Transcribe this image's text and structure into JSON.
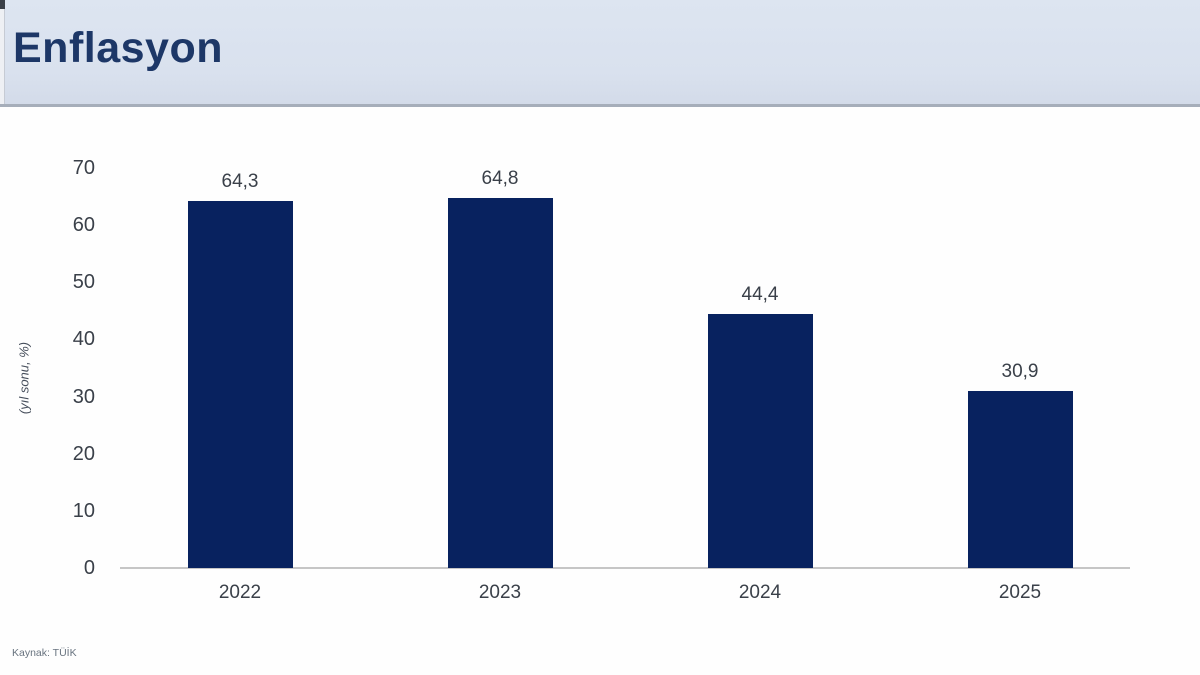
{
  "header": {
    "title": "Enflasyon"
  },
  "source_note": "Kaynak: TÜİK",
  "colors": {
    "bar": "#08225f",
    "header_bg": "#d9e1ee",
    "header_border": "#a6aeba",
    "title": "#1d3767",
    "tick_text": "#3a4049",
    "axis_line": "#c6c6c6",
    "source_text": "#68737f"
  },
  "chart_data": {
    "type": "bar",
    "title": "Enflasyon",
    "categories": [
      "2022",
      "2023",
      "2024",
      "2025"
    ],
    "values": [
      64.3,
      64.8,
      44.4,
      30.9
    ],
    "value_labels": [
      "64,3",
      "64,8",
      "44,4",
      "30,9"
    ],
    "xlabel": "",
    "ylabel": "(yıl sonu, %)",
    "ylim": [
      0,
      70
    ],
    "yticks": [
      0,
      10,
      20,
      30,
      40,
      50,
      60,
      70
    ],
    "grid": false,
    "legend": false,
    "bar_color": "#08225f",
    "source": "Kaynak: TÜİK"
  }
}
